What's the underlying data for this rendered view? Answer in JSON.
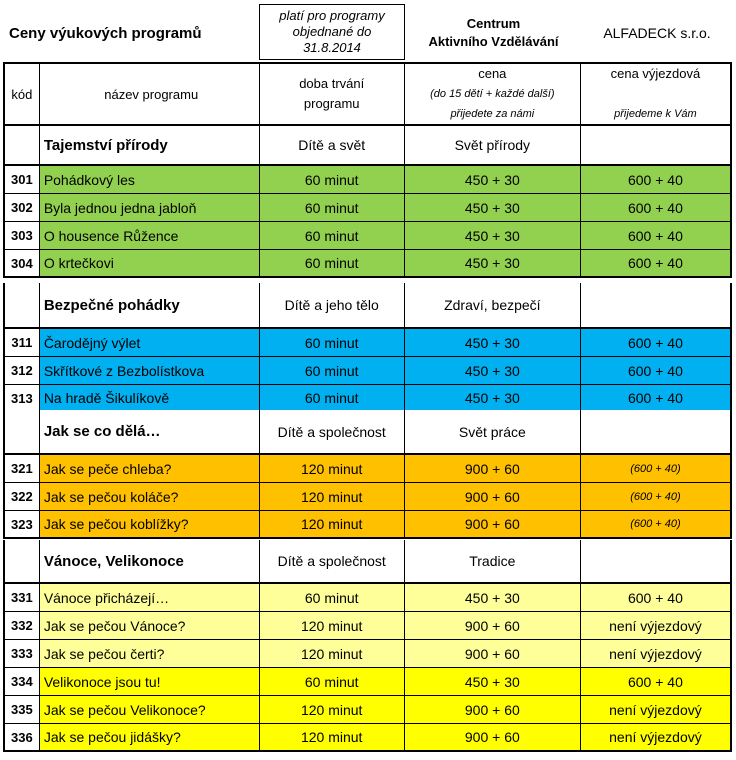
{
  "header": {
    "title": "Ceny výukových programů",
    "validity": [
      "platí pro programy",
      "objednané do",
      "31.8.2014"
    ],
    "centrum": [
      "Centrum",
      "Aktivního Vzdělávání"
    ],
    "company": "ALFADECK s.r.o."
  },
  "columns": {
    "kod": "kód",
    "nazev": "název programu",
    "doba": [
      "doba trvání",
      "programu"
    ],
    "cena": "cena",
    "cena_note": "(do 15 dětí + každé další)",
    "cena_sub": "přijedete za námi",
    "vyjezd": "cena výjezdová",
    "vyjezd_sub": "přijedeme k Vám"
  },
  "colors": {
    "green": "#92D050",
    "blue": "#00B0F0",
    "orange": "#FFC000",
    "light_yellow": "#FFFF99",
    "yellow": "#FFFF00"
  },
  "sections": [
    {
      "title": "Tajemství přírody",
      "topic": "Dítě a svět",
      "area": "Svět přírody",
      "color": "#92D050",
      "rows": [
        {
          "code": "301",
          "name": "Pohádkový les",
          "duration": "60 minut",
          "price": "450 + 30",
          "away": "600 + 40"
        },
        {
          "code": "302",
          "name": "Byla jednou jedna jabloň",
          "duration": "60 minut",
          "price": "450 + 30",
          "away": "600 + 40"
        },
        {
          "code": "303",
          "name": "O housence Růžence",
          "duration": "60 minut",
          "price": "450 + 30",
          "away": "600 + 40"
        },
        {
          "code": "304",
          "name": "O krtečkovi",
          "duration": "60 minut",
          "price": "450 + 30",
          "away": "600 + 40"
        }
      ]
    },
    {
      "title": "Bezpečné pohádky",
      "topic": "Dítě a jeho tělo",
      "area": "Zdraví, bezpečí",
      "color": "#00B0F0",
      "rows": [
        {
          "code": "311",
          "name": "Čarodějný výlet",
          "duration": "60 minut",
          "price": "450 + 30",
          "away": "600 + 40"
        },
        {
          "code": "312",
          "name": "Skřítkové z Bezbolístkova",
          "duration": "60 minut",
          "price": "450 + 30",
          "away": "600 + 40"
        },
        {
          "code": "313",
          "name": "Na hradě Šikulíkově",
          "duration": "60 minut",
          "price": "450 + 30",
          "away": "600 + 40"
        }
      ]
    },
    {
      "title": "Jak se co dělá…",
      "topic": "Dítě a společnost",
      "area": "Svět práce",
      "color": "#FFC000",
      "rows": [
        {
          "code": "321",
          "name": "Jak se peče chleba?",
          "duration": "120 minut",
          "price": "900 + 60",
          "away": "(600 + 40)",
          "away_italic": true
        },
        {
          "code": "322",
          "name": "Jak se pečou koláče?",
          "duration": "120 minut",
          "price": "900 + 60",
          "away": "(600 + 40)",
          "away_italic": true
        },
        {
          "code": "323",
          "name": "Jak se pečou koblížky?",
          "duration": "120 minut",
          "price": "900 + 60",
          "away": "(600 + 40)",
          "away_italic": true
        }
      ]
    },
    {
      "title": "Vánoce, Velikonoce",
      "topic": "Dítě a společnost",
      "area": "Tradice",
      "color": "#FFFF99",
      "rows": [
        {
          "code": "331",
          "name": "Vánoce přicházejí…",
          "duration": "60 minut",
          "price": "450 + 30",
          "away": "600 + 40",
          "color": "#FFFF99"
        },
        {
          "code": "332",
          "name": "Jak se pečou Vánoce?",
          "duration": "120 minut",
          "price": "900 + 60",
          "away": "není výjezdový",
          "color": "#FFFF99"
        },
        {
          "code": "333",
          "name": "Jak se pečou čerti?",
          "duration": "120 minut",
          "price": "900 + 60",
          "away": "není výjezdový",
          "color": "#FFFF99"
        },
        {
          "code": "334",
          "name": "Velikonoce jsou tu!",
          "duration": "60 minut",
          "price": "450 + 30",
          "away": "600 + 40",
          "color": "#FFFF00"
        },
        {
          "code": "335",
          "name": "Jak se pečou Velikonoce?",
          "duration": "120 minut",
          "price": "900 + 60",
          "away": "není výjezdový",
          "color": "#FFFF00"
        },
        {
          "code": "336",
          "name": "Jak se pečou jidášky?",
          "duration": "120 minut",
          "price": "900 + 60",
          "away": "není výjezdový",
          "color": "#FFFF00"
        }
      ]
    }
  ]
}
